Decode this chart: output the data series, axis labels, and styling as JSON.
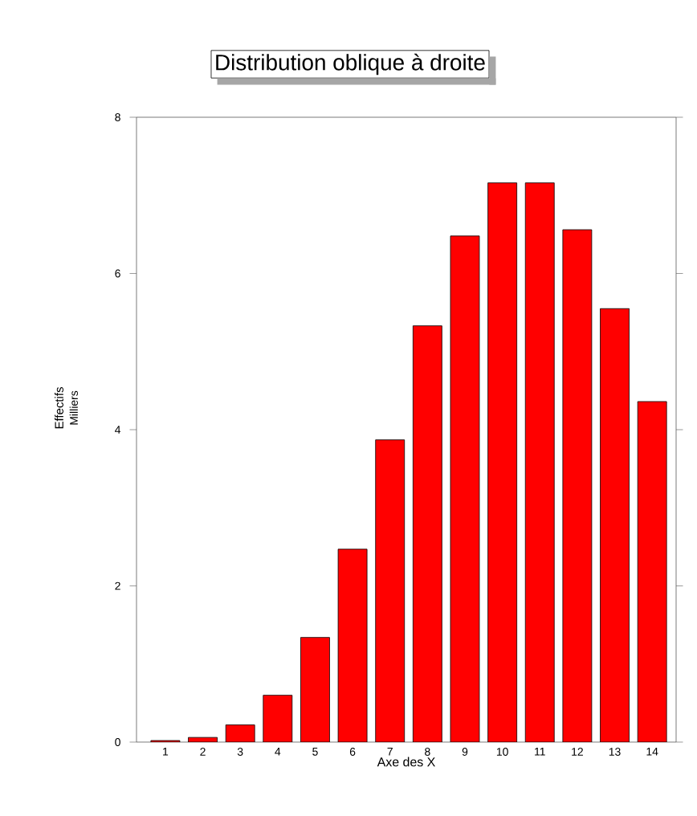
{
  "chart_data": {
    "type": "bar",
    "title": "Distribution oblique à droite",
    "xlabel": "Axe des X",
    "ylabel": "Effectifs",
    "annotations": [
      "Milliers"
    ],
    "categories": [
      "1",
      "2",
      "3",
      "4",
      "5",
      "6",
      "7",
      "8",
      "9",
      "10",
      "11",
      "12",
      "13",
      "14"
    ],
    "values": [
      0.02,
      0.06,
      0.22,
      0.6,
      1.34,
      2.47,
      3.87,
      5.33,
      6.48,
      7.16,
      7.16,
      6.56,
      5.55,
      4.36
    ],
    "color": "#ff0000",
    "ylim": [
      0,
      8
    ],
    "yticks": [
      0,
      2,
      4,
      6,
      8
    ]
  }
}
